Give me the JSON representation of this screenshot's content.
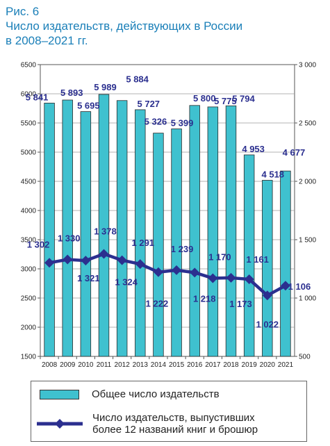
{
  "figure": {
    "title_lines": [
      "Рис. 6",
      "Число издательств, действующих в России",
      "в 2008–2021 гг."
    ]
  },
  "colors": {
    "bar": "#3fc1cf",
    "bar_stroke": "#2a2a2a",
    "line": "#2b2f8f",
    "label": "#2b2f8f",
    "title": "#1a7fb8"
  },
  "legend": {
    "bar_label": "Общее число издательств",
    "line_label_1": "Число издательств, выпустивших",
    "line_label_2": "более 12 названий книг и брошюр"
  },
  "chart_data": {
    "type": "bar",
    "categories": [
      "2008",
      "2009",
      "2010",
      "2011",
      "2012",
      "2013",
      "2014",
      "2015",
      "2016",
      "2017",
      "2018",
      "2019",
      "2020",
      "2021"
    ],
    "series": [
      {
        "name": "Общее число издательств",
        "type": "bar",
        "axis": "left",
        "values": [
          5841,
          5893,
          5695,
          5989,
          5884,
          5727,
          5326,
          5399,
          5800,
          5775,
          5794,
          4953,
          4518,
          4677
        ],
        "labels": [
          "5 841",
          "5 893",
          "5 695",
          "5 989",
          "5 884",
          "5 727",
          "5 326",
          "5 399",
          "5 800",
          "5 775",
          "5 794",
          "4 953",
          "4 518",
          "4 677"
        ]
      },
      {
        "name": "Число издательств, выпустивших более 12 названий книг и брошюр",
        "type": "line",
        "axis": "right",
        "values": [
          1302,
          1330,
          1321,
          1378,
          1324,
          1291,
          1222,
          1239,
          1218,
          1170,
          1173,
          1161,
          1022,
          1106
        ],
        "labels": [
          "1 302",
          "1 330",
          "1 321",
          "1 378",
          "1 324",
          "1 291",
          "1 222",
          "1 239",
          "1 218",
          "1 170",
          "1 173",
          "1 161",
          "1 022",
          "1 106"
        ]
      }
    ],
    "ylim_left": [
      1500,
      6500
    ],
    "ylim_right": [
      500,
      3000
    ],
    "yticks_left": [
      "1500",
      "2000",
      "2500",
      "3000",
      "3500",
      "4000",
      "4500",
      "5000",
      "5500",
      "6000",
      "6500"
    ],
    "yticks_right": [
      "500",
      "1 000",
      "1 500",
      "2 000",
      "2 500",
      "3 000"
    ],
    "grid": true
  }
}
